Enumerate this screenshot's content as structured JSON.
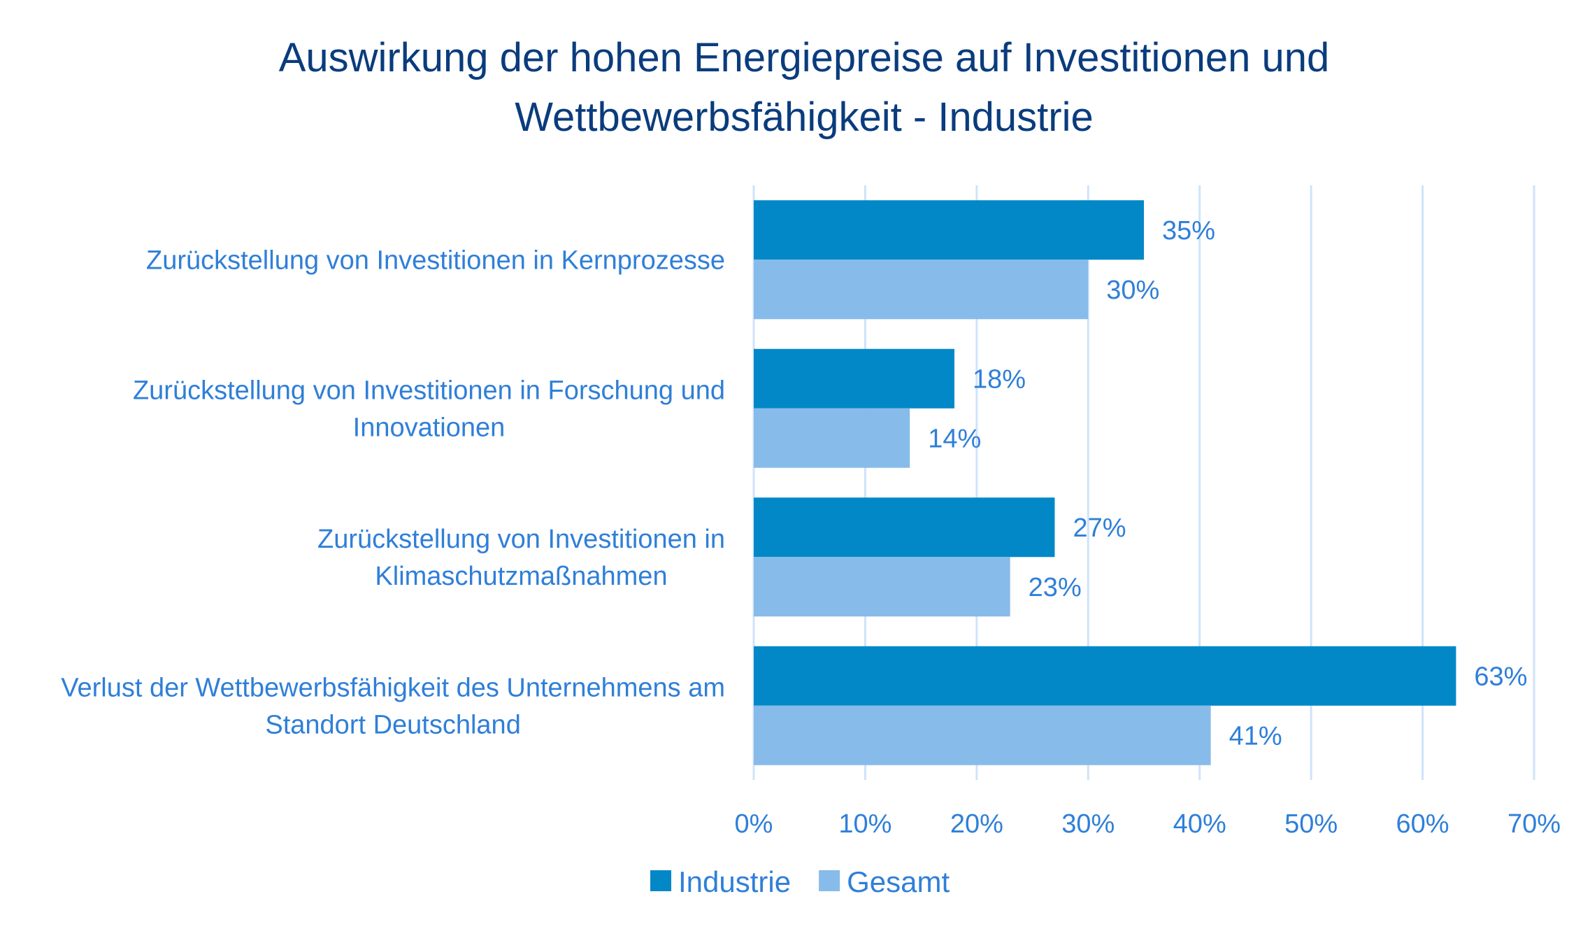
{
  "chart_data": {
    "type": "bar",
    "orientation": "horizontal",
    "title_lines": [
      "Auswirkung der hohen Energiepreise auf Investitionen und",
      "Wettbewerbsfähigkeit - Industrie"
    ],
    "categories": [
      [
        "Zurückstellung von Investitionen in Kernprozesse"
      ],
      [
        "Zurückstellung von Investitionen in Forschung und",
        "Innovationen"
      ],
      [
        "Zurückstellung von Investitionen in",
        "Klimaschutzmaßnahmen"
      ],
      [
        "Verlust der Wettbewerbsfähigkeit des Unternehmens am",
        "Standort Deutschland"
      ]
    ],
    "series": [
      {
        "name": "Industrie",
        "values": [
          35,
          18,
          27,
          63
        ],
        "labels": [
          "35%",
          "18%",
          "27%",
          "63%"
        ],
        "color": "#0288c7"
      },
      {
        "name": "Gesamt",
        "values": [
          30,
          14,
          23,
          41
        ],
        "labels": [
          "30%",
          "14%",
          "23%",
          "41%"
        ],
        "color": "#87bbea"
      }
    ],
    "xlim": [
      0,
      70
    ],
    "ticks": [
      "0%",
      "10%",
      "20%",
      "30%",
      "40%",
      "50%",
      "60%",
      "70%"
    ],
    "grid": "vertical",
    "legend_position": "bottom"
  },
  "colors": {
    "title": "#0a3c7d",
    "text": "#2f7fd8",
    "grid": "#cfe3fb"
  }
}
